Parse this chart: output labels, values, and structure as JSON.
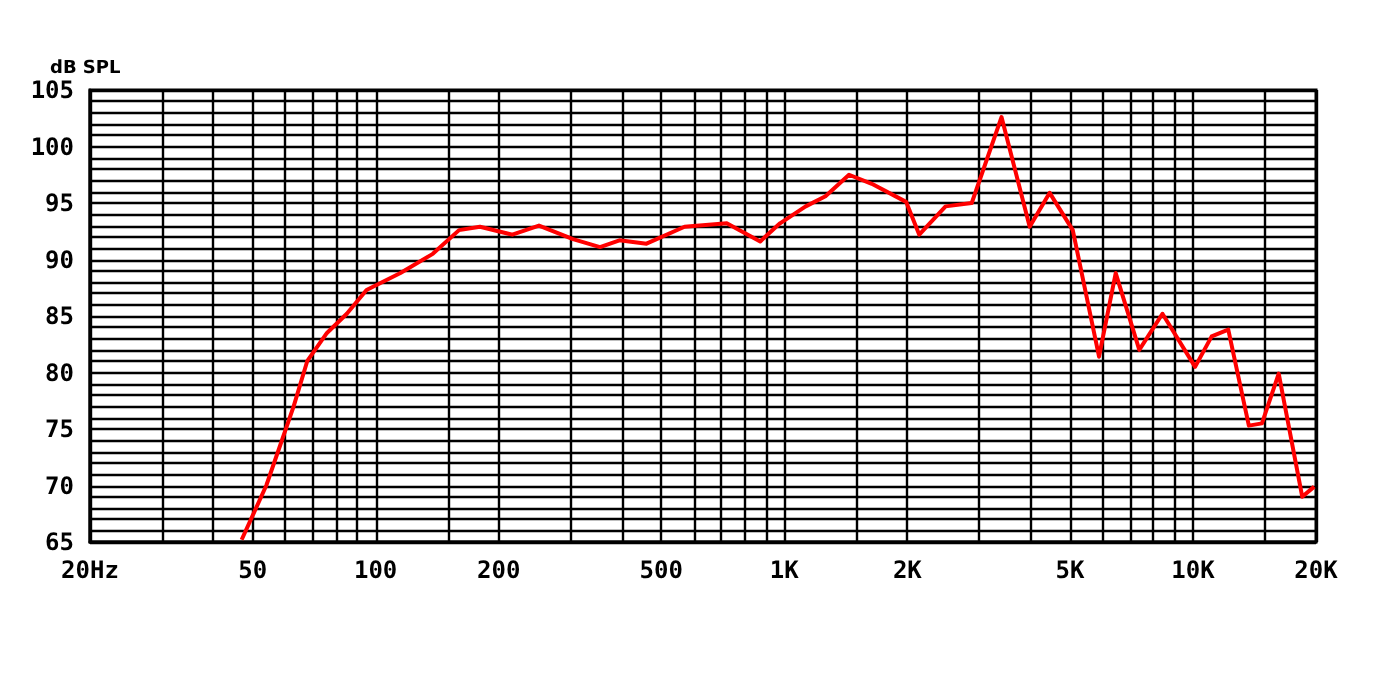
{
  "chart_data": {
    "type": "line",
    "ylabel": "dB SPL",
    "log": "x",
    "grid": true,
    "marker": "none",
    "line_style": "solid",
    "xlim": [
      20,
      20000
    ],
    "ylim": [
      65,
      105
    ],
    "xticks": [
      {
        "value": 20,
        "label": "20Hz"
      },
      {
        "value": 30,
        "label": null
      },
      {
        "value": 40,
        "label": null
      },
      50,
      {
        "value": 60,
        "label": null
      },
      {
        "value": 70,
        "label": null
      },
      {
        "value": 80,
        "label": null
      },
      {
        "value": 90,
        "label": null
      },
      100,
      {
        "value": 150,
        "label": null
      },
      200,
      {
        "value": 300,
        "label": null
      },
      {
        "value": 400,
        "label": null
      },
      500,
      {
        "value": 600,
        "label": null
      },
      {
        "value": 700,
        "label": null
      },
      {
        "value": 800,
        "label": null
      },
      {
        "value": 900,
        "label": null
      },
      {
        "value": 1000,
        "label": "1K"
      },
      {
        "value": 1500,
        "label": null
      },
      {
        "value": 2000,
        "label": "2K"
      },
      {
        "value": 3000,
        "label": null
      },
      {
        "value": 4000,
        "label": null
      },
      {
        "value": 5000,
        "label": "5K"
      },
      {
        "value": 6000,
        "label": null
      },
      {
        "value": 7000,
        "label": null
      },
      {
        "value": 8000,
        "label": null
      },
      {
        "value": 9000,
        "label": null
      },
      {
        "value": 10000,
        "label": "10K"
      },
      {
        "value": 15000,
        "label": null
      },
      {
        "value": 20000,
        "label": "20K"
      }
    ],
    "yticks": [
      65,
      {
        "value": 66,
        "label": null
      },
      {
        "value": 67,
        "label": null
      },
      {
        "value": 68,
        "label": null
      },
      {
        "value": 69,
        "label": null
      },
      70,
      {
        "value": 71,
        "label": null
      },
      {
        "value": 72,
        "label": null
      },
      {
        "value": 73,
        "label": null
      },
      {
        "value": 74,
        "label": null
      },
      75,
      {
        "value": 76,
        "label": null
      },
      {
        "value": 77,
        "label": null
      },
      {
        "value": 78,
        "label": null
      },
      {
        "value": 79,
        "label": null
      },
      80,
      {
        "value": 81,
        "label": null
      },
      {
        "value": 82,
        "label": null
      },
      {
        "value": 83,
        "label": null
      },
      {
        "value": 84,
        "label": null
      },
      85,
      {
        "value": 86,
        "label": null
      },
      {
        "value": 87,
        "label": null
      },
      {
        "value": 88,
        "label": null
      },
      {
        "value": 89,
        "label": null
      },
      90,
      {
        "value": 91,
        "label": null
      },
      {
        "value": 92,
        "label": null
      },
      {
        "value": 93,
        "label": null
      },
      {
        "value": 94,
        "label": null
      },
      95,
      {
        "value": 96,
        "label": null
      },
      {
        "value": 97,
        "label": null
      },
      {
        "value": 98,
        "label": null
      },
      {
        "value": 99,
        "label": null
      },
      100,
      {
        "value": 101,
        "label": null
      },
      {
        "value": 102,
        "label": null
      },
      {
        "value": 103,
        "label": null
      },
      {
        "value": 104,
        "label": null
      },
      105
    ],
    "series": [
      {
        "color": "#ff0000",
        "x": [
          47,
          54,
          63,
          68,
          76,
          85,
          95,
          115,
          138,
          160,
          180,
          216,
          251,
          304,
          354,
          395,
          460,
          570,
          723,
          873,
          976,
          1128,
          1261,
          1440,
          1637,
          1986,
          2139,
          2481,
          2875,
          3400,
          3985,
          4460,
          5080,
          5890,
          6470,
          7390,
          8420,
          10120,
          11110,
          12200,
          13700,
          14750,
          16210,
          18510,
          19800
        ],
        "values": [
          65.2,
          70,
          77,
          81,
          83.5,
          85.2,
          87.3,
          88.8,
          90.5,
          92.6,
          92.9,
          92.2,
          93,
          91.8,
          91.1,
          91.7,
          91.4,
          92.9,
          93.2,
          91.6,
          93.2,
          94.7,
          95.6,
          97.5,
          96.7,
          95.1,
          92.2,
          94.7,
          95,
          102.6,
          92.9,
          95.9,
          92.6,
          81.4,
          88.8,
          82,
          85.2,
          80.5,
          83.2,
          83.8,
          75.3,
          75.5,
          79.9,
          69,
          69.9
        ]
      }
    ]
  }
}
